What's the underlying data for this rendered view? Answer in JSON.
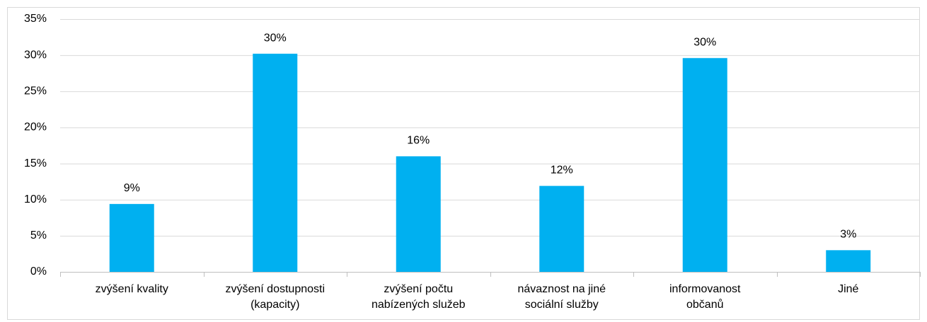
{
  "chart_data": {
    "type": "bar",
    "categories": [
      [
        "zvýšení kvality"
      ],
      [
        "zvýšení dostupnosti",
        "(kapacity)"
      ],
      [
        "zvýšení počtu",
        "nabízených služeb"
      ],
      [
        "návaznost na jiné",
        "sociální služby"
      ],
      [
        "informovanost",
        "občanů"
      ],
      [
        "Jiné"
      ]
    ],
    "values": [
      9.4,
      30.2,
      16.0,
      11.9,
      29.6,
      3.0
    ],
    "value_labels": [
      "9%",
      "30%",
      "16%",
      "12%",
      "30%",
      "3%"
    ],
    "color": "#00b0f0",
    "ylim": [
      0,
      35
    ],
    "yticks": [
      {
        "value": 0,
        "label": "0%"
      },
      {
        "value": 5,
        "label": "5%"
      },
      {
        "value": 10,
        "label": "10%"
      },
      {
        "value": 15,
        "label": "15%"
      },
      {
        "value": 20,
        "label": "20%"
      },
      {
        "value": 25,
        "label": "25%"
      },
      {
        "value": 30,
        "label": "30%"
      },
      {
        "value": 35,
        "label": "35%"
      }
    ],
    "grid": true
  }
}
